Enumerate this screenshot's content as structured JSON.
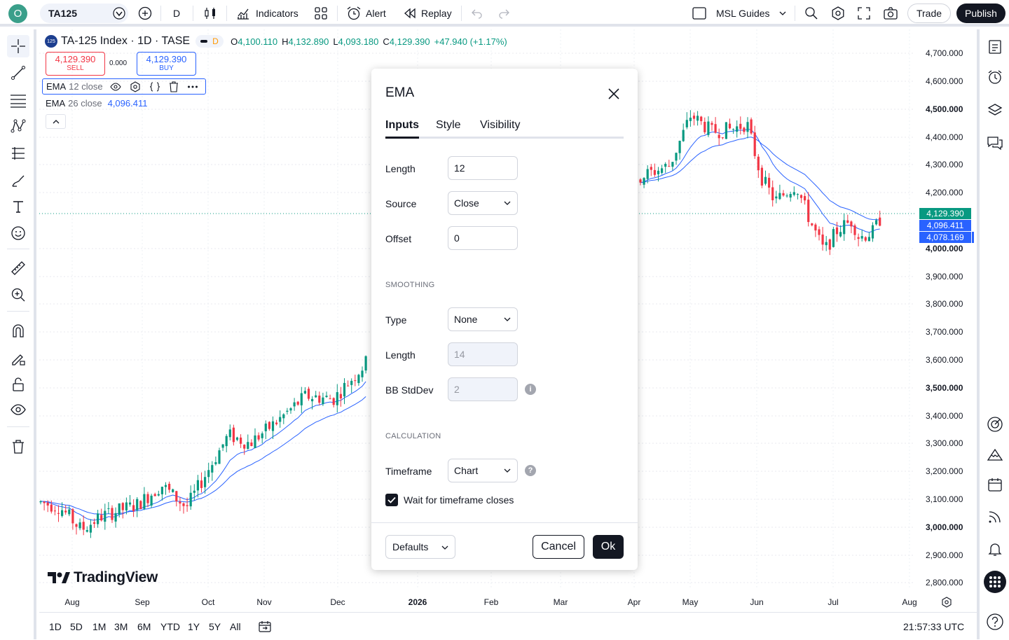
{
  "topbar": {
    "avatar": "O",
    "symbol": "TA125",
    "interval": "D",
    "indicators_label": "Indicators",
    "alert_label": "Alert",
    "replay_label": "Replay",
    "layout_name": "MSL Guides",
    "trade_label": "Trade",
    "publish_label": "Publish"
  },
  "legend": {
    "logo": "125",
    "title": "TA-125 Index · 1D · TASE",
    "badge": "D",
    "o_label": "O",
    "o_value": "4,100.110",
    "h_label": "H",
    "h_value": "4,132.890",
    "l_label": "L",
    "l_value": "4,093.180",
    "c_label": "C",
    "c_value": "4,129.390",
    "change": "+47.940 (+1.17%)",
    "sell_price": "4,129.390",
    "sell_label": "SELL",
    "spread": "0.000",
    "buy_price": "4,129.390",
    "buy_label": "BUY",
    "ema1_name": "EMA",
    "ema1_params": "12 close",
    "ema2_name": "EMA",
    "ema2_params": "26 close",
    "ema2_value": "4,096.411"
  },
  "chart": {
    "y_labels": [
      "4,700.000",
      "4,600.000",
      "4,500.000",
      "4,400.000",
      "4,300.000",
      "4,200.000",
      "4,000.000",
      "3,900.000",
      "3,800.000",
      "3,700.000",
      "3,600.000",
      "3,500.000",
      "3,400.000",
      "3,300.000",
      "3,200.000",
      "3,100.000",
      "3,000.000",
      "2,900.000",
      "2,800.000"
    ],
    "x_labels": [
      "Aug",
      "Sep",
      "Oct",
      "Nov",
      "Dec",
      "2026",
      "Feb",
      "Mar",
      "Apr",
      "May",
      "Jun",
      "Jul",
      "Aug"
    ],
    "price_tags": [
      "4,129.390",
      "4,096.411",
      "4,078.169"
    ],
    "colors": {
      "up": "#089981",
      "down": "#f23645",
      "ema": "#2962ff",
      "price": "#089981",
      "ema_tag": "#2962ff"
    },
    "watermark": "TradingView"
  },
  "dialog": {
    "title": "EMA",
    "tabs": [
      "Inputs",
      "Style",
      "Visibility"
    ],
    "length_label": "Length",
    "length_value": "12",
    "source_label": "Source",
    "source_value": "Close",
    "offset_label": "Offset",
    "offset_value": "0",
    "smoothing_header": "SMOOTHING",
    "type_label": "Type",
    "type_value": "None",
    "smooth_length_label": "Length",
    "smooth_length_value": "14",
    "bb_label": "BB StdDev",
    "bb_value": "2",
    "calculation_header": "CALCULATION",
    "timeframe_label": "Timeframe",
    "timeframe_value": "Chart",
    "wait_label": "Wait for timeframe closes",
    "wait_checked": true,
    "defaults_label": "Defaults",
    "cancel_label": "Cancel",
    "ok_label": "Ok"
  },
  "bottombar": {
    "ranges": [
      "1D",
      "5D",
      "1M",
      "3M",
      "6M",
      "YTD",
      "1Y",
      "5Y",
      "All"
    ],
    "clock": "21:57:33 UTC"
  }
}
